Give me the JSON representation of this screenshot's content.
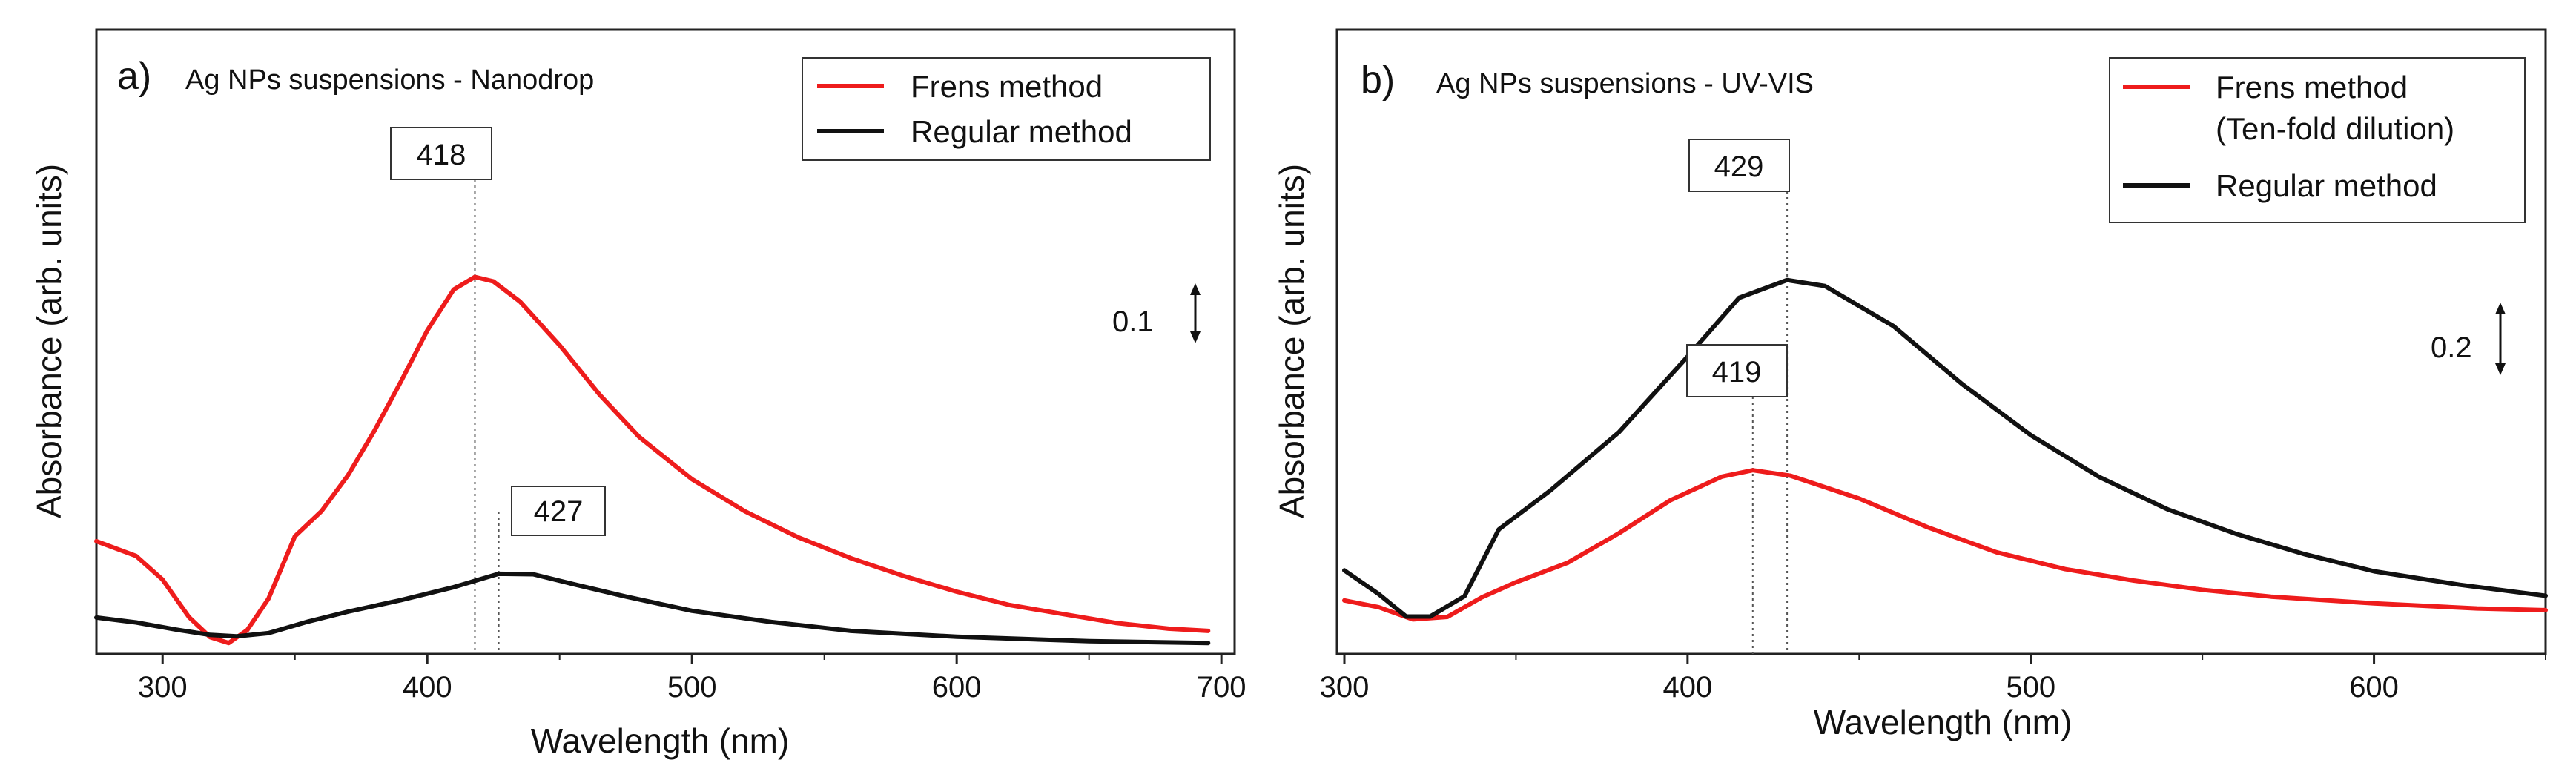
{
  "chart_data": [
    {
      "type": "line",
      "panel_label": "a)",
      "title": "Ag NPs suspensions - Nanodrop",
      "xlabel": "Wavelength (nm)",
      "ylabel": "Absorbance (arb. units)",
      "xlim": [
        275,
        705
      ],
      "ylim": [
        0,
        1
      ],
      "x_ticks": [
        300,
        400,
        500,
        600,
        700
      ],
      "y_ticks_shown": false,
      "grid": false,
      "legend_position": "top-right",
      "series": [
        {
          "name": "Frens method",
          "color": "#ee1c1c",
          "points": [
            [
              275,
              0.236
            ],
            [
              290,
              0.203
            ],
            [
              300,
              0.15
            ],
            [
              310,
              0.066
            ],
            [
              318,
              0.021
            ],
            [
              325,
              0.008
            ],
            [
              332,
              0.037
            ],
            [
              340,
              0.107
            ],
            [
              350,
              0.247
            ],
            [
              360,
              0.303
            ],
            [
              370,
              0.383
            ],
            [
              380,
              0.483
            ],
            [
              390,
              0.593
            ],
            [
              400,
              0.708
            ],
            [
              410,
              0.8
            ],
            [
              418,
              0.828
            ],
            [
              425,
              0.818
            ],
            [
              435,
              0.773
            ],
            [
              450,
              0.675
            ],
            [
              465,
              0.565
            ],
            [
              480,
              0.47
            ],
            [
              500,
              0.375
            ],
            [
              520,
              0.303
            ],
            [
              540,
              0.245
            ],
            [
              560,
              0.198
            ],
            [
              580,
              0.158
            ],
            [
              600,
              0.123
            ],
            [
              620,
              0.093
            ],
            [
              640,
              0.073
            ],
            [
              660,
              0.053
            ],
            [
              680,
              0.04
            ],
            [
              695,
              0.035
            ]
          ]
        },
        {
          "name": "Regular method",
          "color": "#111111",
          "points": [
            [
              275,
              0.065
            ],
            [
              290,
              0.054
            ],
            [
              305,
              0.038
            ],
            [
              318,
              0.026
            ],
            [
              328,
              0.023
            ],
            [
              340,
              0.03
            ],
            [
              355,
              0.056
            ],
            [
              370,
              0.078
            ],
            [
              390,
              0.104
            ],
            [
              410,
              0.133
            ],
            [
              427,
              0.163
            ],
            [
              440,
              0.162
            ],
            [
              455,
              0.14
            ],
            [
              475,
              0.112
            ],
            [
              500,
              0.08
            ],
            [
              530,
              0.055
            ],
            [
              560,
              0.035
            ],
            [
              600,
              0.022
            ],
            [
              650,
              0.012
            ],
            [
              695,
              0.008
            ]
          ]
        }
      ],
      "annotations": [
        {
          "label": "418",
          "x": 418
        },
        {
          "label": "427",
          "x": 427
        }
      ],
      "scale_bar": {
        "label": "0.1",
        "value": 0.1
      }
    },
    {
      "type": "line",
      "panel_label": "b)",
      "title": "Ag NPs suspensions - UV-VIS",
      "xlabel": "Wavelength (nm)",
      "ylabel": "Absorbance (arb. units)",
      "xlim": [
        300,
        650
      ],
      "ylim": [
        0,
        1
      ],
      "x_ticks": [
        300,
        400,
        500,
        600
      ],
      "y_ticks_shown": false,
      "grid": false,
      "legend_position": "top-right",
      "series": [
        {
          "name": "Frens method",
          "name_line2": "(Ten-fold dilution)",
          "color": "#ee1c1c",
          "points": [
            [
              300,
              0.053
            ],
            [
              310,
              0.037
            ],
            [
              320,
              0.008
            ],
            [
              330,
              0.014
            ],
            [
              340,
              0.06
            ],
            [
              350,
              0.096
            ],
            [
              365,
              0.142
            ],
            [
              380,
              0.212
            ],
            [
              395,
              0.29
            ],
            [
              410,
              0.346
            ],
            [
              419,
              0.361
            ],
            [
              430,
              0.348
            ],
            [
              450,
              0.294
            ],
            [
              470,
              0.226
            ],
            [
              490,
              0.167
            ],
            [
              510,
              0.127
            ],
            [
              530,
              0.1
            ],
            [
              550,
              0.078
            ],
            [
              570,
              0.062
            ],
            [
              600,
              0.046
            ],
            [
              630,
              0.034
            ],
            [
              650,
              0.03
            ]
          ]
        },
        {
          "name": "Regular method",
          "color": "#111111",
          "points": [
            [
              300,
              0.124
            ],
            [
              310,
              0.068
            ],
            [
              318,
              0.015
            ],
            [
              325,
              0.015
            ],
            [
              335,
              0.063
            ],
            [
              345,
              0.221
            ],
            [
              360,
              0.313
            ],
            [
              380,
              0.451
            ],
            [
              400,
              0.63
            ],
            [
              415,
              0.769
            ],
            [
              429,
              0.811
            ],
            [
              440,
              0.797
            ],
            [
              460,
              0.702
            ],
            [
              480,
              0.565
            ],
            [
              500,
              0.444
            ],
            [
              520,
              0.345
            ],
            [
              540,
              0.268
            ],
            [
              560,
              0.21
            ],
            [
              580,
              0.162
            ],
            [
              600,
              0.122
            ],
            [
              625,
              0.09
            ],
            [
              650,
              0.064
            ]
          ]
        }
      ],
      "annotations": [
        {
          "label": "429",
          "x": 429
        },
        {
          "label": "419",
          "x": 419
        }
      ],
      "scale_bar": {
        "label": "0.2",
        "value": 0.2
      }
    }
  ]
}
